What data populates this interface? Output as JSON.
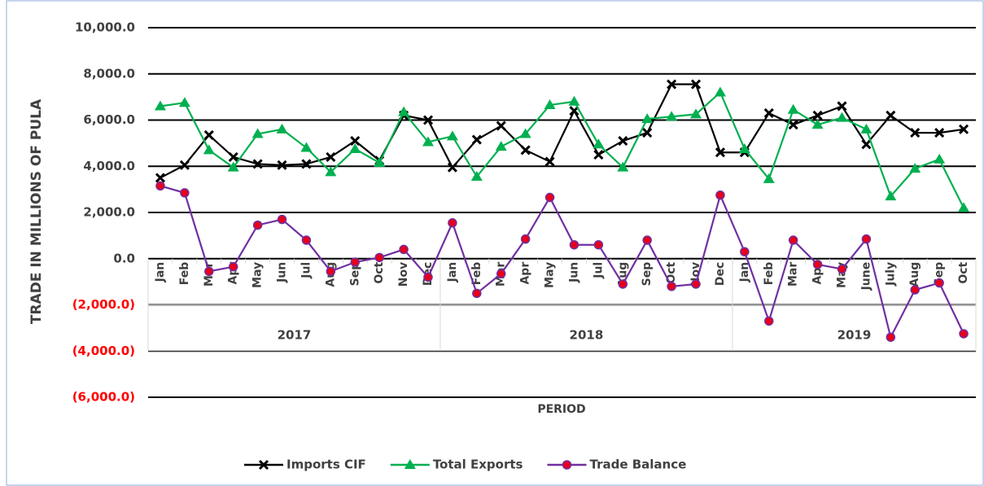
{
  "chart_data": {
    "type": "line",
    "y_axis_title": "TRADE IN MILLIONS OF PULA",
    "x_axis_title": "PERIOD",
    "categories": [
      "Jan",
      "Feb",
      "Mar",
      "Apr",
      "May",
      "Jun",
      "Jul",
      "Aug",
      "Sep",
      "Oct",
      "Nov",
      "Dec",
      "Jan",
      "Feb",
      "Mar",
      "Apr",
      "May",
      "Jun",
      "Jul",
      "Aug",
      "Sep",
      "Oct",
      "Nov",
      "Dec",
      "Jan",
      "Feb",
      "Mar",
      "Apr",
      "May",
      "June",
      "July",
      "Aug",
      "Sep",
      "Oct"
    ],
    "category_groups": [
      {
        "name": "2017",
        "count": 12
      },
      {
        "name": "2018",
        "count": 12
      },
      {
        "name": "2019",
        "count": 10
      }
    ],
    "series": [
      {
        "name": "Imports CIF",
        "color": "#000000",
        "marker": "x",
        "marker_color": "#000000",
        "values": [
          3500,
          4050,
          5350,
          4400,
          4100,
          4050,
          4100,
          4400,
          5100,
          4250,
          6200,
          6000,
          3950,
          5150,
          5750,
          4700,
          4200,
          6400,
          4500,
          5100,
          5450,
          7550,
          7550,
          4600,
          4600,
          6300,
          5800,
          6200,
          6600,
          4950,
          6200,
          5450,
          5450,
          5600
        ]
      },
      {
        "name": "Total Exports",
        "color": "#00b050",
        "marker": "triangle",
        "marker_color": "#00b050",
        "values": [
          6600,
          6750,
          4700,
          3950,
          5400,
          5600,
          4800,
          3750,
          4750,
          4150,
          6350,
          5050,
          5300,
          3550,
          4850,
          5400,
          6650,
          6800,
          4950,
          3950,
          6050,
          6150,
          6250,
          7200,
          4750,
          3450,
          6450,
          5800,
          6100,
          5600,
          2700,
          3900,
          4300,
          2200
        ]
      },
      {
        "name": "Trade Balance",
        "color": "#7030a0",
        "marker": "circle",
        "marker_color": "#e8001c",
        "values": [
          3150,
          2850,
          -550,
          -350,
          1450,
          1700,
          800,
          -550,
          -150,
          50,
          400,
          -800,
          1550,
          -1500,
          -650,
          850,
          2650,
          600,
          600,
          -1100,
          800,
          -1200,
          -1100,
          2750,
          300,
          -2700,
          800,
          -250,
          -450,
          850,
          -3400,
          -1350,
          -1050,
          -3250
        ]
      }
    ],
    "ylim": [
      -6000,
      10000
    ],
    "yticks": [
      {
        "value": -6000,
        "label": "(6,000.0)"
      },
      {
        "value": -4000,
        "label": "(4,000.0)"
      },
      {
        "value": -2000,
        "label": "(2,000.0)"
      },
      {
        "value": 0,
        "label": "0.0"
      },
      {
        "value": 2000,
        "label": "2,000.0"
      },
      {
        "value": 4000,
        "label": "4,000.0"
      },
      {
        "value": 6000,
        "label": "6,000.0"
      },
      {
        "value": 8000,
        "label": "8,000.0"
      },
      {
        "value": 10000,
        "label": "10,000.0"
      }
    ],
    "negative_tick_color": "#ff0000",
    "grid": true,
    "legend": "bottom"
  }
}
